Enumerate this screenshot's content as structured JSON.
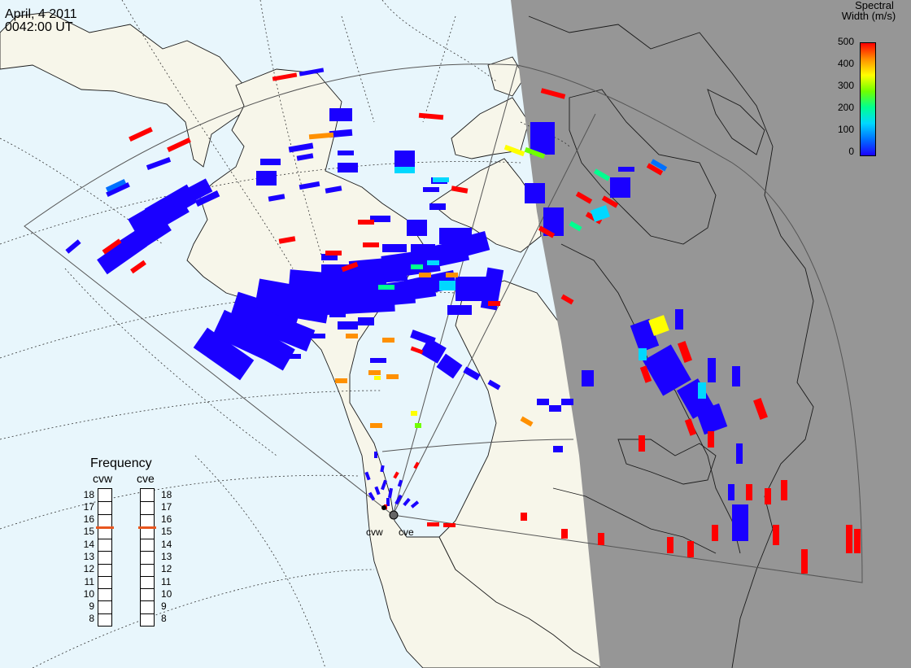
{
  "header": {
    "date": "April, 4 2011",
    "time": "0042:00 UT"
  },
  "colorscale": {
    "title_line1": "Spectral",
    "title_line2": "Width (m/s)",
    "ticks": [
      "500",
      "400",
      "300",
      "200",
      "100",
      "0"
    ],
    "min": 0,
    "max": 500,
    "colors": [
      "#1a00ff",
      "#0070ff",
      "#00d8ff",
      "#00ff90",
      "#70ff00",
      "#ffff00",
      "#ff9000",
      "#ff0000"
    ]
  },
  "frequency": {
    "title": "Frequency",
    "radars": [
      "cvw",
      "cve"
    ],
    "scale_labels": [
      "18",
      "17",
      "16",
      "15",
      "14",
      "13",
      "12",
      "11",
      "10",
      "9",
      "8"
    ],
    "cvw_MHz": 15.4,
    "cve_MHz": 15.4,
    "marker_color": "#e8561f"
  },
  "sites": {
    "cvw": "cvw",
    "cve": "cve"
  },
  "map_colors": {
    "ocean": "#e8f6fc",
    "land": "#f7f6ea",
    "night": "#969696",
    "coast": "#1a1a1a",
    "grid": "#333333"
  }
}
